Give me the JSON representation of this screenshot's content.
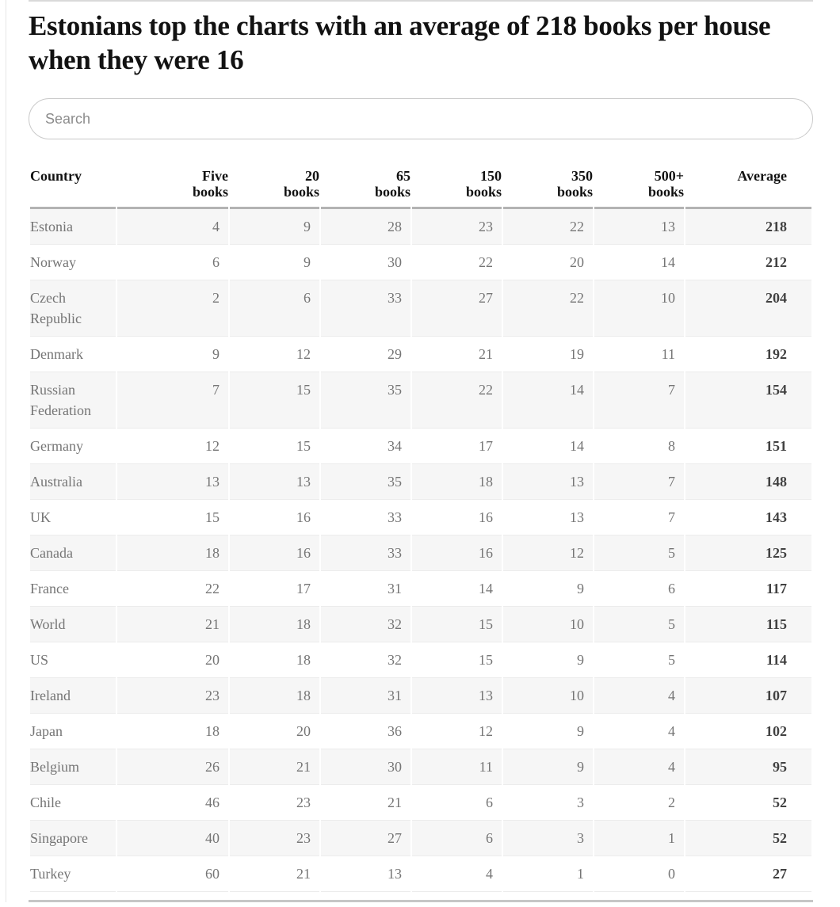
{
  "header": {
    "title": "Estonians top the charts with an average of 218 books per house when they were 16"
  },
  "search": {
    "placeholder": "Search",
    "value": ""
  },
  "table": {
    "headers": [
      {
        "l1": "Country",
        "l2": ""
      },
      {
        "l1": "Five",
        "l2": "books"
      },
      {
        "l1": "20",
        "l2": "books"
      },
      {
        "l1": "65",
        "l2": "books"
      },
      {
        "l1": "150",
        "l2": "books"
      },
      {
        "l1": "350",
        "l2": "books"
      },
      {
        "l1": "500+",
        "l2": "books"
      },
      {
        "l1": "Average",
        "l2": ""
      }
    ]
  },
  "chart_data": {
    "type": "table",
    "title": "Estonians top the charts with an average of 218 books per house when they were 16",
    "columns": [
      "Country",
      "Five books",
      "20 books",
      "65 books",
      "150 books",
      "350 books",
      "500+ books",
      "Average"
    ],
    "rows": [
      [
        "Estonia",
        4,
        9,
        28,
        23,
        22,
        13,
        218
      ],
      [
        "Norway",
        6,
        9,
        30,
        22,
        20,
        14,
        212
      ],
      [
        "Czech Republic",
        2,
        6,
        33,
        27,
        22,
        10,
        204
      ],
      [
        "Denmark",
        9,
        12,
        29,
        21,
        19,
        11,
        192
      ],
      [
        "Russian Federation",
        7,
        15,
        35,
        22,
        14,
        7,
        154
      ],
      [
        "Germany",
        12,
        15,
        34,
        17,
        14,
        8,
        151
      ],
      [
        "Australia",
        13,
        13,
        35,
        18,
        13,
        7,
        148
      ],
      [
        "UK",
        15,
        16,
        33,
        16,
        13,
        7,
        143
      ],
      [
        "Canada",
        18,
        16,
        33,
        16,
        12,
        5,
        125
      ],
      [
        "France",
        22,
        17,
        31,
        14,
        9,
        6,
        117
      ],
      [
        "World",
        21,
        18,
        32,
        15,
        10,
        5,
        115
      ],
      [
        "US",
        20,
        18,
        32,
        15,
        9,
        5,
        114
      ],
      [
        "Ireland",
        23,
        18,
        31,
        13,
        10,
        4,
        107
      ],
      [
        "Japan",
        18,
        20,
        36,
        12,
        9,
        4,
        102
      ],
      [
        "Belgium",
        26,
        21,
        30,
        11,
        9,
        4,
        95
      ],
      [
        "Chile",
        46,
        23,
        21,
        6,
        3,
        2,
        52
      ],
      [
        "Singapore",
        40,
        23,
        27,
        6,
        3,
        1,
        52
      ],
      [
        "Turkey",
        60,
        21,
        13,
        4,
        1,
        0,
        27
      ]
    ]
  },
  "colors": {
    "headline_text": "#121212",
    "body_text": "#757575",
    "average_text": "#414141",
    "stripe_background": "#f6f6f6",
    "header_rule": "#b3b3b3",
    "bottom_rule": "#c6c6c6",
    "row_border": "#ececec",
    "search_border": "#c9c9c9",
    "top_rule": "#d9d9d9",
    "left_rule": "#e5e5e5"
  }
}
